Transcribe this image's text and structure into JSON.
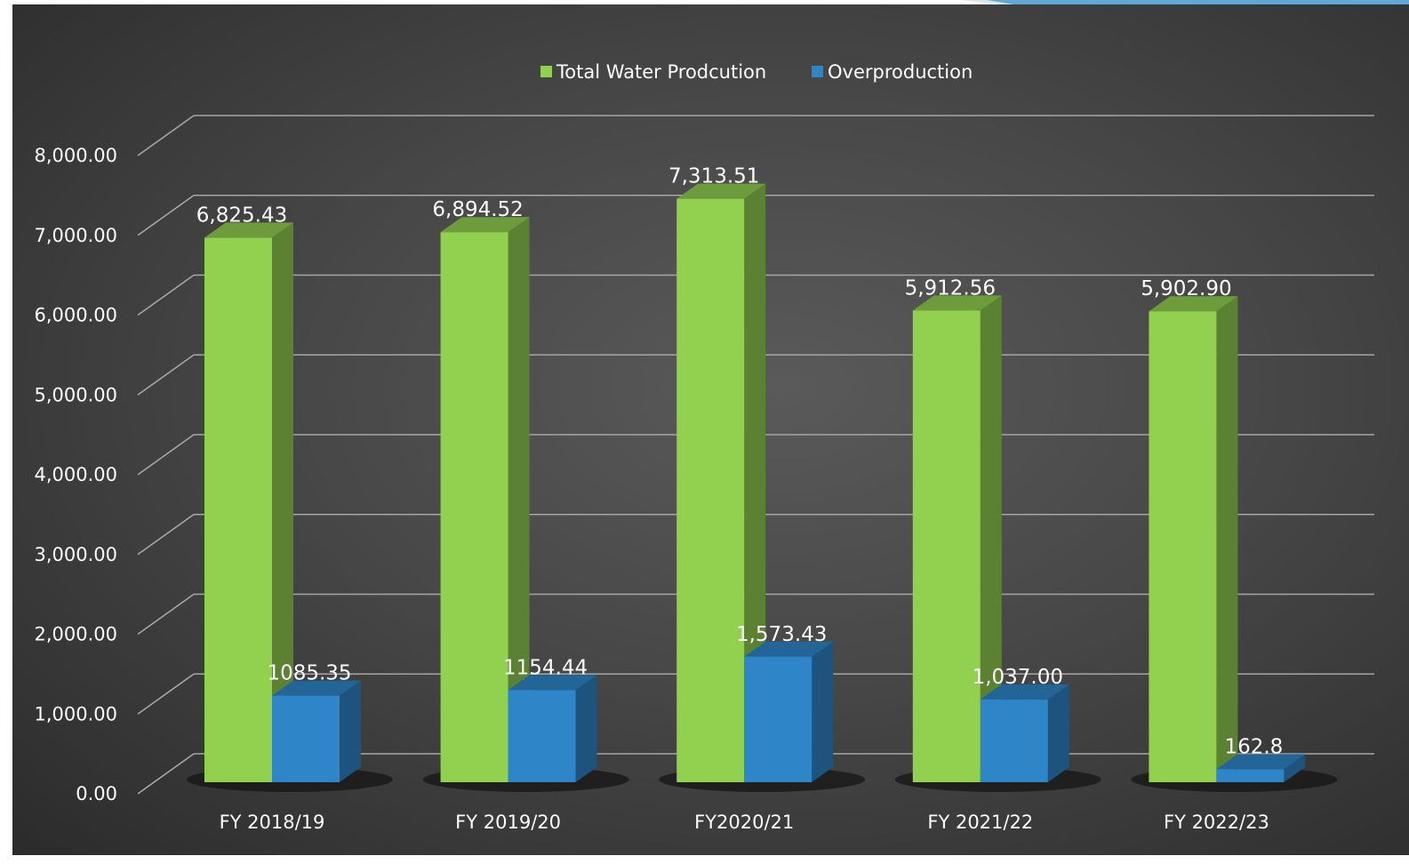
{
  "chart_data": {
    "type": "bar",
    "title": "",
    "xlabel": "",
    "ylabel": "",
    "ylim": [
      0,
      8000
    ],
    "yticks": [
      "0.00",
      "1,000.00",
      "2,000.00",
      "3,000.00",
      "4,000.00",
      "5,000.00",
      "6,000.00",
      "7,000.00",
      "8,000.00"
    ],
    "categories": [
      "FY 2018/19",
      "FY 2019/20",
      "FY2020/21",
      "FY 2021/22",
      "FY 2022/23"
    ],
    "grid": true,
    "legend_position": "top",
    "three_d": true,
    "series": [
      {
        "name": "Total Water Prodcution",
        "color": "#92d050",
        "values": [
          6825.43,
          6894.52,
          7313.51,
          5912.56,
          5902.9
        ],
        "labels": [
          "6,825.43",
          "6,894.52",
          "7,313.51",
          "5,912.56",
          "5,902.90"
        ]
      },
      {
        "name": "Overproduction",
        "color": "#2e86c8",
        "values": [
          1085.35,
          1154.44,
          1573.43,
          1037.0,
          162.8
        ],
        "labels": [
          "1085.35",
          "1154.44",
          "1,573.43",
          "1,037.00",
          "162.8"
        ]
      }
    ]
  },
  "colors": {
    "background_dark": "#2b2b2b",
    "background_light": "#5a5a5a",
    "gridline": "#a6a6a6",
    "text": "#ffffff",
    "accent_blue": "#5fa8d8"
  }
}
